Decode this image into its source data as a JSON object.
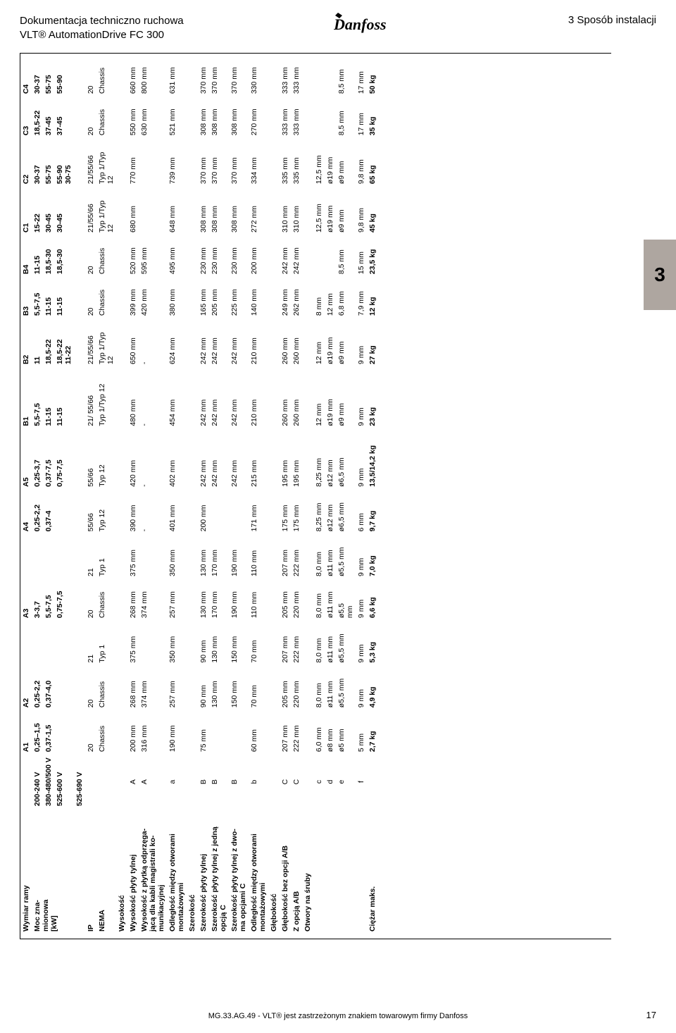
{
  "header": {
    "title1": "Dokumentacja techniczno ruchowa",
    "title2": "VLT® AutomationDrive FC 300",
    "section": "3 Sposób instalacji",
    "logo_text": "Danfoss"
  },
  "side_tab": "3",
  "table": {
    "col_headers": [
      "A1",
      "A2",
      "A3",
      "A4",
      "A5",
      "B1",
      "B2",
      "B3",
      "B4",
      "C1",
      "C2",
      "C3",
      "C4"
    ],
    "power_label": "Moc zna-\nmionowa\n[kW]",
    "voltage_rows": [
      {
        "label": "200-240 V",
        "vals": [
          "0,25–1,5",
          "0,25-2,2",
          "3-3,7",
          "0,25-2,2",
          "0,25-3,7",
          "5,5-7,5",
          "11",
          "5,5-7,5",
          "11-15",
          "15-22",
          "30-37",
          "18,5-22",
          "30-37"
        ]
      },
      {
        "label": "380-480/500 V",
        "vals": [
          "0,37-1,5",
          "0,37-4,0",
          "5,5-7,5",
          "0,37-4",
          "0,37-7,5",
          "11-15",
          "18,5-22",
          "11-15",
          "18,5-30",
          "30-45",
          "55-75",
          "37-45",
          "55-75"
        ]
      },
      {
        "label": "525-600 V",
        "vals": [
          "",
          "",
          "0,75-7,5",
          "",
          "0,75-7,5",
          "11-15",
          "18,5-22\n11-22",
          "11-15",
          "18,5-30",
          "30-45",
          "55-90\n30-75",
          "37-45",
          "55-90"
        ]
      },
      {
        "label": "525-690 V",
        "vals": [
          "",
          "",
          "",
          "",
          "",
          "",
          "",
          "",
          "",
          "",
          "",
          "",
          ""
        ]
      }
    ],
    "ip_label": "IP",
    "ip_vals": [
      "20",
      "20",
      "21",
      "20",
      "21",
      "55/66",
      "55/66",
      "21/ 55/66",
      "21/55/66",
      "20",
      "20",
      "21/55/66",
      "21/55/66",
      "20",
      "20"
    ],
    "ip_row": {
      "A1": "20",
      "A2a": "20",
      "A2b": "21",
      "A3a": "20",
      "A3b": "21",
      "A4": "55/66",
      "A5": "55/66",
      "B1": "21/ 55/66",
      "B2": "21/55/66",
      "B3": "20",
      "B4": "20",
      "C1": "21/55/66",
      "C2": "21/55/66",
      "C3": "20",
      "C4": "20"
    },
    "nema_label": "NEMA",
    "nema_row": {
      "A1": "Chassis",
      "A2a": "Chassis",
      "A2b": "Typ 1",
      "A3a": "Chassis",
      "A3b": "Typ 1",
      "A4": "Typ 12",
      "A5": "Typ 12",
      "B1": "Typ 1/Typ 12",
      "B2": "Typ 1/Typ\n12",
      "B3": "Chassis",
      "B4": "Chassis",
      "C1": "Typ 1/Typ\n12",
      "C2": "Typ 1/Typ\n12",
      "C3": "Chassis",
      "C4": "Chassis"
    },
    "sections": [
      {
        "title": "Wysokość",
        "rows": [
          {
            "label": "Wysokość płyty tylnej",
            "code": "A",
            "vals": {
              "A1": "200 mm",
              "A2a": "268 mm",
              "A2b": "375 mm",
              "A3a": "268 mm",
              "A3b": "375 mm",
              "A4": "390 mm",
              "A5": "420 mm",
              "B1": "480 mm",
              "B2": "650 mm",
              "B3": "399 mm",
              "B4": "520 mm",
              "C1": "680 mm",
              "C2": "770 mm",
              "C3": "550 mm",
              "C4": "660 mm"
            }
          },
          {
            "label": "Wysokość z płytką odprzęga-\njącą dla kabli magistrali ko-\nmunikacyjnej",
            "code": "A",
            "vals": {
              "A1": "316 mm",
              "A2a": "374 mm",
              "A2b": "",
              "A3a": "374 mm",
              "A3b": "",
              "A4": "-",
              "A5": "-",
              "B1": "-",
              "B2": "-",
              "B3": "420 mm",
              "B4": "595 mm",
              "C1": "",
              "C2": "",
              "C3": "630 mm",
              "C4": "800 mm"
            }
          },
          {
            "label": "Odległość między otworami\nmontażowymi",
            "code": "a",
            "vals": {
              "A1": "190 mm",
              "A2a": "257 mm",
              "A2b": "350 mm",
              "A3a": "257 mm",
              "A3b": "350 mm",
              "A4": "401 mm",
              "A5": "402 mm",
              "B1": "454 mm",
              "B2": "624 mm",
              "B3": "380 mm",
              "B4": "495 mm",
              "C1": "648 mm",
              "C2": "739 mm",
              "C3": "521 mm",
              "C4": "631 mm"
            }
          }
        ]
      },
      {
        "title": "Szerokość",
        "rows": [
          {
            "label": "Szerokość płyty tylnej",
            "code": "B",
            "vals": {
              "A1": "75 mm",
              "A2a": "90 mm",
              "A2b": "90 mm",
              "A3a": "130 mm",
              "A3b": "130 mm",
              "A4": "200 mm",
              "A5": "242 mm",
              "B1": "242 mm",
              "B2": "242 mm",
              "B3": "165 mm",
              "B4": "230 mm",
              "C1": "308 mm",
              "C2": "370 mm",
              "C3": "308 mm",
              "C4": "370 mm"
            }
          },
          {
            "label": "Szerokość płyty tylnej z jedną\nopcją C",
            "code": "B",
            "vals": {
              "A1": "",
              "A2a": "130 mm",
              "A2b": "130 mm",
              "A3a": "170 mm",
              "A3b": "170 mm",
              "A4": "",
              "A5": "242 mm",
              "B1": "242 mm",
              "B2": "242 mm",
              "B3": "205 mm",
              "B4": "230 mm",
              "C1": "308 mm",
              "C2": "370 mm",
              "C3": "308 mm",
              "C4": "370 mm"
            }
          },
          {
            "label": "Szerokość płyty tylnej z dwo-\nma opcjami C",
            "code": "B",
            "vals": {
              "A1": "",
              "A2a": "150 mm",
              "A2b": "150 mm",
              "A3a": "190 mm",
              "A3b": "190 mm",
              "A4": "",
              "A5": "242 mm",
              "B1": "242 mm",
              "B2": "242 mm",
              "B3": "225 mm",
              "B4": "230 mm",
              "C1": "308 mm",
              "C2": "370 mm",
              "C3": "308 mm",
              "C4": "370 mm"
            }
          },
          {
            "label": "Odległość między otworami\nmontażowymi",
            "code": "b",
            "vals": {
              "A1": "60 mm",
              "A2a": "70 mm",
              "A2b": "70 mm",
              "A3a": "110 mm",
              "A3b": "110 mm",
              "A4": "171 mm",
              "A5": "215 mm",
              "B1": "210 mm",
              "B2": "210 mm",
              "B3": "140 mm",
              "B4": "200 mm",
              "C1": "272 mm",
              "C2": "334 mm",
              "C3": "270 mm",
              "C4": "330 mm"
            }
          }
        ]
      },
      {
        "title": "Głębokość",
        "rows": [
          {
            "label": "Głębokość bez opcji A/B",
            "code": "C",
            "vals": {
              "A1": "207 mm",
              "A2a": "205 mm",
              "A2b": "207 mm",
              "A3a": "205 mm",
              "A3b": "207 mm",
              "A4": "175 mm",
              "A5": "195 mm",
              "B1": "260 mm",
              "B2": "260 mm",
              "B3": "249 mm",
              "B4": "242 mm",
              "C1": "310 mm",
              "C2": "335 mm",
              "C3": "333 mm",
              "C4": "333 mm"
            }
          },
          {
            "label": "Z opcją A/B",
            "code": "C",
            "vals": {
              "A1": "222 mm",
              "A2a": "220 mm",
              "A2b": "222 mm",
              "A3a": "220 mm",
              "A3b": "222 mm",
              "A4": "175 mm",
              "A5": "195 mm",
              "B1": "260 mm",
              "B2": "260 mm",
              "B3": "262 mm",
              "B4": "242 mm",
              "C1": "310 mm",
              "C2": "335 mm",
              "C3": "333 mm",
              "C4": "333 mm"
            }
          }
        ]
      },
      {
        "title": "Otwory na śruby",
        "rows": [
          {
            "label": "",
            "code": "c",
            "vals": {
              "A1": "6,0 mm",
              "A2a": "8,0 mm",
              "A2b": "8,0 mm",
              "A3a": "8,0 mm",
              "A3b": "8,0 mm",
              "A4": "8,25 mm",
              "A5": "8,25 mm",
              "B1": "12 mm",
              "B2": "12 mm",
              "B3": "8 mm",
              "B4": "",
              "C1": "12,5 mm",
              "C2": "12,5 mm",
              "C3": "",
              "C4": ""
            }
          },
          {
            "label": "",
            "code": "d",
            "vals": {
              "A1": "ø8 mm",
              "A2a": "ø11 mm",
              "A2b": "ø11 mm",
              "A3a": "ø11 mm",
              "A3b": "ø11 mm",
              "A4": "ø12 mm",
              "A5": "ø12 mm",
              "B1": "ø19 mm",
              "B2": "ø19 mm",
              "B3": "12 mm",
              "B4": "",
              "C1": "ø19 mm",
              "C2": "ø19 mm",
              "C3": "",
              "C4": ""
            }
          },
          {
            "label": "",
            "code": "e",
            "vals": {
              "A1": "ø5 mm",
              "A2a": "ø5,5 mm",
              "A2b": "ø5,5 mm",
              "A3a": "ø5,5\nmm",
              "A3b": "ø5,5 mm",
              "A4": "ø6,5 mm",
              "A5": "ø6,5 mm",
              "B1": "ø9 mm",
              "B2": "ø9 mm",
              "B3": "6,8 mm",
              "B4": "8,5 mm",
              "C1": "ø9 mm",
              "C2": "ø9 mm",
              "C3": "8,5 mm",
              "C4": "8,5 mm"
            }
          },
          {
            "label": "",
            "code": "f",
            "vals": {
              "A1": "5 mm",
              "A2a": "9 mm",
              "A2b": "9 mm",
              "A3a": "9 mm",
              "A3b": "9 mm",
              "A4": "6 mm",
              "A5": "9 mm",
              "B1": "9 mm",
              "B2": "9 mm",
              "B3": "7,9 mm",
              "B4": "15 mm",
              "C1": "9,8 mm",
              "C2": "9,8 mm",
              "C3": "17 mm",
              "C4": "17 mm"
            }
          }
        ]
      },
      {
        "title": "",
        "rows": [
          {
            "label": "Ciężar maks.",
            "code": "",
            "bold": true,
            "vals": {
              "A1": "2,7 kg",
              "A2a": "4,9 kg",
              "A2b": "5,3 kg",
              "A3a": "6,6 kg",
              "A3b": "7,0 kg",
              "A4": "9,7 kg",
              "A5": "13,5/14,2 kg",
              "B1": "23 kg",
              "B2": "27 kg",
              "B3": "12 kg",
              "B4": "23,5 kg",
              "C1": "45 kg",
              "C2": "65 kg",
              "C3": "35 kg",
              "C4": "50 kg"
            }
          }
        ]
      }
    ],
    "frame_label": "Wymiar ramy"
  },
  "footer": {
    "center": "MG.33.AG.49 - VLT® jest zastrzeżonym znakiem towarowym firmy Danfoss",
    "page": "17"
  },
  "colors": {
    "tab": "#aea6a0"
  }
}
